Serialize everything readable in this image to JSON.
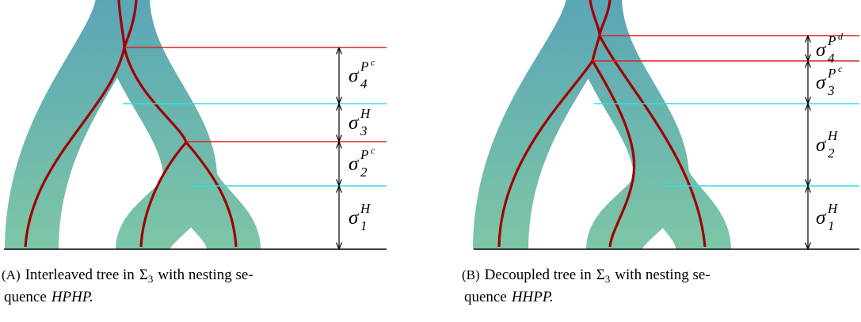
{
  "panels": [
    {
      "caption": {
        "tag": "(A)",
        "text": "Interleaved tree in",
        "symbol": "Σ",
        "symbol_sub": "3",
        "text2": "with nesting se-",
        "line2": "quence",
        "sequence": "HPHP."
      },
      "intervals": [
        {
          "symbol": "σ",
          "sub": "4",
          "sup": "P",
          "sup_sup": "c"
        },
        {
          "symbol": "σ",
          "sub": "3",
          "sup": "H"
        },
        {
          "symbol": "σ",
          "sub": "2",
          "sup": "P",
          "sup_sup": "c"
        },
        {
          "symbol": "σ",
          "sub": "1",
          "sup": "H"
        }
      ]
    },
    {
      "caption": {
        "tag": "(B)",
        "text": "Decoupled tree in",
        "symbol": "Σ",
        "symbol_sub": "3",
        "text2": "with nesting se-",
        "line2": "quence",
        "sequence": "HHPP."
      },
      "intervals": [
        {
          "symbol": "σ",
          "sub": "4",
          "sup": "P",
          "sup_sup": "d"
        },
        {
          "symbol": "σ",
          "sub": "3",
          "sup": "P",
          "sup_sup": "c"
        },
        {
          "symbol": "σ",
          "sub": "2",
          "sup": "H"
        },
        {
          "symbol": "σ",
          "sub": "1",
          "sup": "H"
        }
      ]
    }
  ]
}
